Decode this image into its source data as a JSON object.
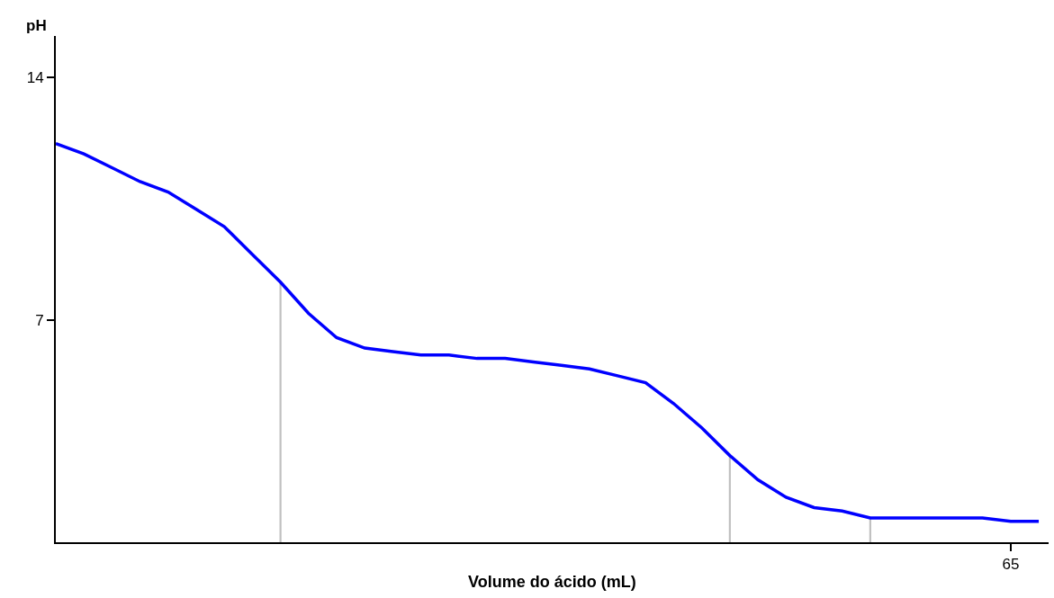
{
  "chart_data": {
    "type": "line",
    "xlabel": "Volume do ácido (mL)",
    "ylabel": "pH",
    "categories": [
      null,
      null,
      null,
      null,
      null,
      null,
      null,
      null,
      null,
      null,
      null,
      null,
      null,
      null,
      null,
      null,
      null,
      null,
      null,
      null,
      null,
      null,
      null,
      null,
      null,
      null,
      null,
      null,
      null,
      null,
      null,
      null,
      null,
      null,
      "65",
      null
    ],
    "series": [
      {
        "type": "bar",
        "color": "#c0c0c0",
        "values": [
          null,
          null,
          null,
          null,
          null,
          null,
          null,
          null,
          8.1,
          null,
          null,
          null,
          null,
          null,
          null,
          null,
          null,
          null,
          null,
          null,
          null,
          null,
          null,
          null,
          3.1,
          null,
          null,
          null,
          null,
          1.3,
          null,
          null,
          null,
          null,
          null,
          null
        ]
      },
      {
        "color": "#0000ff",
        "values": [
          12.1,
          11.8,
          11.4,
          11.0,
          10.7,
          10.2,
          9.7,
          8.9,
          8.1,
          7.2,
          6.5,
          6.2,
          6.1,
          6.0,
          6.0,
          5.9,
          5.9,
          5.8,
          5.7,
          5.6,
          5.4,
          5.2,
          4.6,
          3.9,
          3.1,
          2.4,
          1.9,
          1.6,
          1.5,
          1.3,
          1.3,
          1.3,
          1.3,
          1.3,
          1.2,
          1.2
        ]
      }
    ],
    "ylim": [
      0.6,
      15.2
    ],
    "yticks": [
      7,
      14
    ],
    "marker": "none",
    "line_style": "solid"
  }
}
